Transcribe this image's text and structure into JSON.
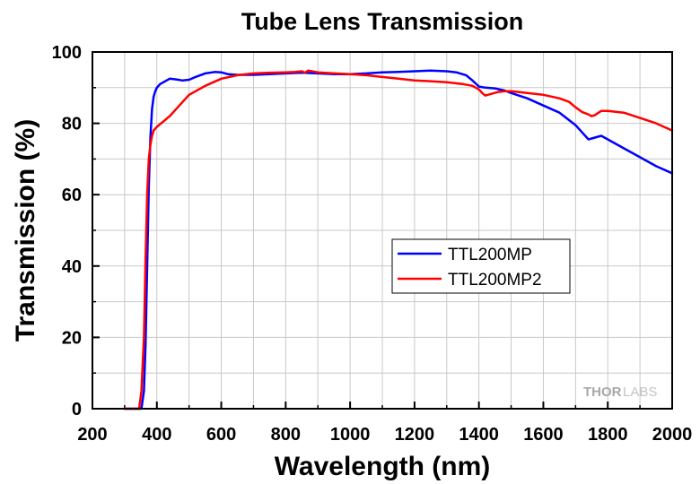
{
  "chart_data": {
    "type": "line",
    "title": "Tube Lens Transmission",
    "xlabel": "Wavelength (nm)",
    "ylabel": "Transmission (%)",
    "xlim": [
      200,
      2000
    ],
    "ylim": [
      0,
      100
    ],
    "x_ticks": [
      200,
      400,
      600,
      800,
      1000,
      1200,
      1400,
      1600,
      1800,
      2000
    ],
    "y_ticks": [
      0,
      20,
      40,
      60,
      80,
      100
    ],
    "x_tick_labels": [
      "200",
      "400",
      "600",
      "800",
      "1000",
      "1200",
      "1400",
      "1600",
      "1800",
      "2000"
    ],
    "y_tick_labels": [
      "0",
      "20",
      "40",
      "60",
      "80",
      "100"
    ],
    "grid": true,
    "legend_position": "center-right",
    "series": [
      {
        "name": "TTL200MP",
        "color": "#0000ff",
        "x": [
          300,
          340,
          352,
          360,
          365,
          370,
          375,
          380,
          385,
          390,
          395,
          400,
          410,
          420,
          440,
          460,
          480,
          500,
          520,
          550,
          580,
          600,
          620,
          650,
          700,
          750,
          800,
          850,
          900,
          950,
          1000,
          1050,
          1100,
          1150,
          1200,
          1250,
          1300,
          1330,
          1360,
          1380,
          1400,
          1420,
          1450,
          1480,
          1500,
          1550,
          1600,
          1650,
          1700,
          1720,
          1740,
          1760,
          1780,
          1800,
          1850,
          1900,
          1950,
          2000
        ],
        "y": [
          0,
          0,
          0,
          5,
          18,
          40,
          62,
          76,
          84,
          87.5,
          89,
          90,
          91,
          91.5,
          92.5,
          92.3,
          92,
          92.2,
          93,
          94,
          94.4,
          94.3,
          93.8,
          93.6,
          93.6,
          93.8,
          94,
          94.2,
          94,
          93.8,
          93.8,
          94,
          94.3,
          94.4,
          94.6,
          94.8,
          94.6,
          94.3,
          93.5,
          92,
          90.3,
          90,
          89.8,
          89.2,
          88.5,
          87,
          85,
          83,
          79.5,
          77.5,
          75.5,
          76,
          76.5,
          75.5,
          73,
          70.5,
          68,
          66
        ]
      },
      {
        "name": "TTL200MP2",
        "color": "#ff0000",
        "x": [
          300,
          345,
          352,
          360,
          365,
          370,
          375,
          380,
          385,
          390,
          400,
          410,
          420,
          440,
          460,
          480,
          500,
          550,
          600,
          650,
          700,
          750,
          800,
          830,
          850,
          860,
          870,
          900,
          950,
          1000,
          1050,
          1100,
          1150,
          1200,
          1250,
          1300,
          1350,
          1380,
          1400,
          1410,
          1420,
          1440,
          1460,
          1480,
          1500,
          1550,
          1600,
          1650,
          1680,
          1700,
          1720,
          1740,
          1750,
          1760,
          1780,
          1800,
          1850,
          1900,
          1950,
          2000
        ],
        "y": [
          0,
          0,
          5,
          20,
          42,
          60,
          70,
          74,
          76.5,
          78,
          79,
          79.8,
          80.5,
          82,
          84,
          86,
          88,
          90.5,
          92.5,
          93.5,
          94,
          94.2,
          94.3,
          94.4,
          94.6,
          94.2,
          94.8,
          94.3,
          94,
          93.8,
          93.5,
          93,
          92.5,
          92,
          91.8,
          91.5,
          91,
          90.5,
          89.5,
          88.5,
          87.8,
          88.3,
          88.8,
          89,
          89,
          88.5,
          88,
          87,
          86,
          84.5,
          83.2,
          82.5,
          82,
          82.3,
          83.5,
          83.5,
          83,
          81.5,
          80,
          78
        ]
      }
    ]
  },
  "watermark": {
    "part1": "THOR",
    "part2": "LABS"
  }
}
